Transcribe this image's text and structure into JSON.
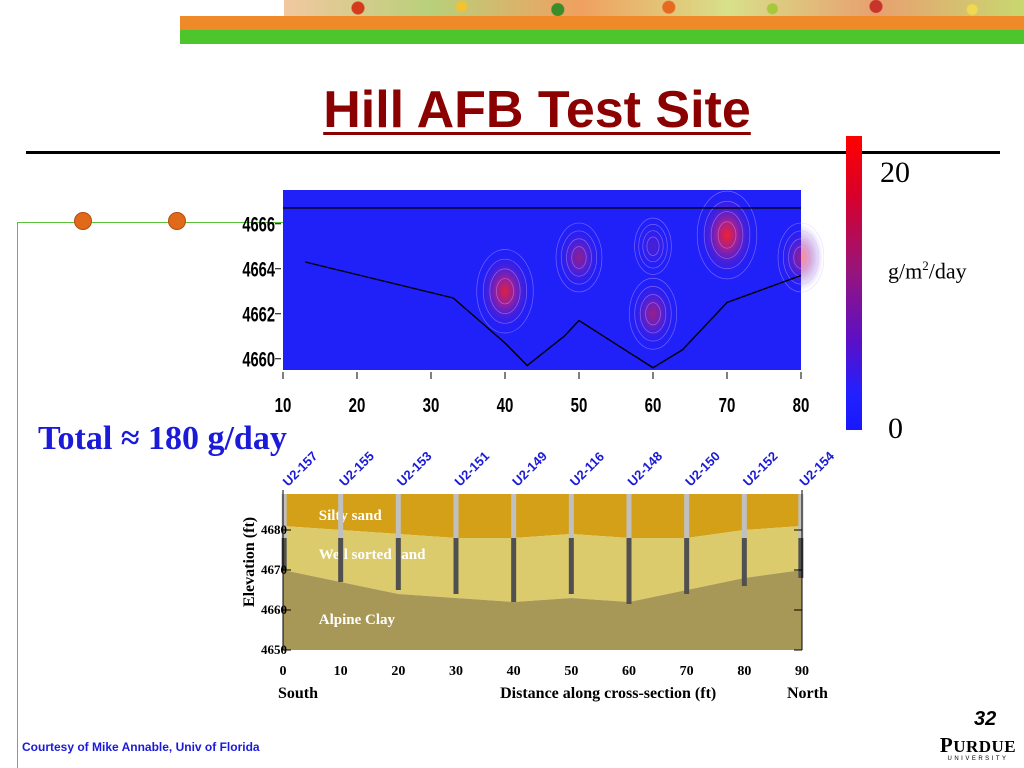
{
  "slide": {
    "title": "Hill AFB Test Site",
    "total_label": "Total ≈ 180 g/day",
    "page_number": "32",
    "courtesy": "Courtesy of Mike Annable, Univ of Florida",
    "logo": {
      "first": "P",
      "rest": "URDUE",
      "sub": "UNIVERSITY"
    },
    "colors": {
      "title": "#8b0000",
      "total": "#1a1ad8",
      "accent_orange": "#e06a1a",
      "accent_green": "#4cc62c"
    }
  },
  "colorbar": {
    "max_label": "20",
    "min_label": "0",
    "unit_prefix": "g/m",
    "unit_sup": "2",
    "unit_suffix": "/day",
    "colors": [
      "#ff0000",
      "#9a1478",
      "#1818ff"
    ]
  },
  "chart_data": [
    {
      "type": "heatmap",
      "title": "",
      "xlabel": "",
      "ylabel": "",
      "xlim": [
        10,
        80
      ],
      "ylim": [
        4659.5,
        4667.5
      ],
      "x_ticks": [
        "10",
        "20",
        "30",
        "40",
        "50",
        "60",
        "70",
        "80"
      ],
      "y_ticks": [
        "4660",
        "4662",
        "4664",
        "4666"
      ],
      "background_color": "#2020f8",
      "water_table": {
        "x": [
          10,
          80
        ],
        "y": [
          4666.7,
          4666.7
        ]
      },
      "clay_surface": {
        "x": [
          13,
          23,
          33,
          40,
          43,
          48,
          50,
          60,
          64,
          70,
          80
        ],
        "y": [
          4664.3,
          4663.5,
          4662.7,
          4660.7,
          4659.7,
          4661.0,
          4661.7,
          4659.6,
          4660.4,
          4662.5,
          4663.7
        ]
      },
      "hotspots": [
        {
          "x": 40,
          "y": 4663,
          "intensity": 0.85
        },
        {
          "x": 70,
          "y": 4665.5,
          "intensity": 0.95
        },
        {
          "x": 60,
          "y": 4662,
          "intensity": 0.55
        },
        {
          "x": 50,
          "y": 4664.5,
          "intensity": 0.5
        },
        {
          "x": 80,
          "y": 4664.5,
          "intensity": 0.5
        },
        {
          "x": 60,
          "y": 4665.0,
          "intensity": 0.2
        }
      ]
    },
    {
      "type": "area",
      "title": "",
      "ylabel": "Elevation (ft)",
      "xlabel": "Distance along cross-section (ft)",
      "xlabel_left": "South",
      "xlabel_right": "North",
      "xlim": [
        0,
        90
      ],
      "ylim": [
        4650,
        4690
      ],
      "x_ticks": [
        "0",
        "10",
        "20",
        "30",
        "40",
        "50",
        "60",
        "70",
        "80",
        "90"
      ],
      "y_ticks": [
        "4650",
        "4660",
        "4670",
        "4680"
      ],
      "layers": [
        {
          "name": "Silty sand",
          "color": "#d4a018",
          "top": [
            4689,
            4689,
            4689,
            4689,
            4689,
            4689,
            4689,
            4689,
            4689,
            4689
          ]
        },
        {
          "name": "Well sorted sand",
          "color": "#dccb6c",
          "top": [
            4681,
            4680,
            4679,
            4678,
            4678,
            4679,
            4678,
            4678,
            4680,
            4681
          ]
        },
        {
          "name": "Alpine Clay",
          "color": "#a89858",
          "top": [
            4670,
            4667,
            4664,
            4663,
            4662,
            4663,
            4662,
            4665,
            4668,
            4670
          ]
        }
      ],
      "layer_x": [
        0,
        10,
        20,
        30,
        40,
        50,
        60,
        70,
        80,
        90
      ],
      "wells": [
        {
          "name": "U2-157",
          "x": 0.2,
          "bottom": 4670
        },
        {
          "name": "U2-155",
          "x": 10,
          "bottom": 4667
        },
        {
          "name": "U2-153",
          "x": 20,
          "bottom": 4665
        },
        {
          "name": "U2-151",
          "x": 30,
          "bottom": 4664
        },
        {
          "name": "U2-149",
          "x": 40,
          "bottom": 4662
        },
        {
          "name": "U2-116",
          "x": 50,
          "bottom": 4664
        },
        {
          "name": "U2-148",
          "x": 60,
          "bottom": 4661.5
        },
        {
          "name": "U2-150",
          "x": 70,
          "bottom": 4664
        },
        {
          "name": "U2-152",
          "x": 80,
          "bottom": 4666
        },
        {
          "name": "U2-154",
          "x": 89.8,
          "bottom": 4668
        }
      ]
    }
  ]
}
